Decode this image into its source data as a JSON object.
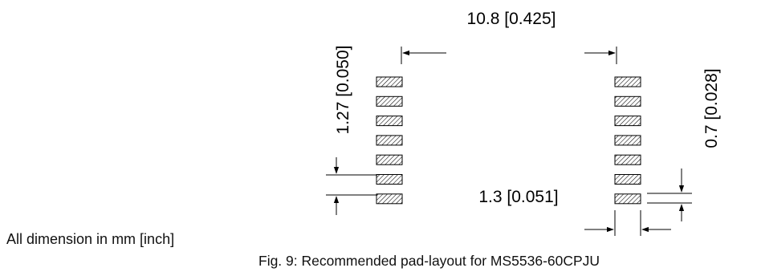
{
  "diagram": {
    "dim_span": "10.8 [0.425]",
    "dim_pitch": "1.27 [0.050]",
    "dim_pad_height": "0.7 [0.028]",
    "dim_pad_width": "1.3 [0.051]",
    "pads_per_row": 7,
    "pad_fill": "hatched"
  },
  "units_note": "All dimension in mm [inch]",
  "caption": "Fig. 9: Recommended pad-layout for MS5536-60CPJU"
}
